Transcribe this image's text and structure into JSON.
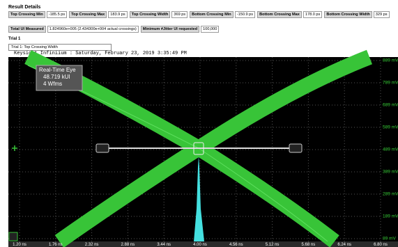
{
  "header": {
    "title": "Result Details"
  },
  "measurements": [
    {
      "label": "Top Crossing Min",
      "value": "-185.5 ps"
    },
    {
      "label": "Top Crossing Max",
      "value": "183.9 ps"
    },
    {
      "label": "Top Crossing Width",
      "value": "369 ps"
    },
    {
      "label": "Bottom Crossing Min",
      "value": "-150.9 ps"
    },
    {
      "label": "Bottom Crossing Max",
      "value": "178.0 ps"
    },
    {
      "label": "Bottom Crossing Width",
      "value": "329 ps"
    }
  ],
  "summary": [
    {
      "label": "Total UI Measured",
      "value": "1.824960e+005 (2.434300e+004 actual crossings)"
    },
    {
      "label": "Minimum #Jitter UI requested",
      "value": "100,000"
    }
  ],
  "trial": {
    "title": "Trial 1",
    "tab": "Trial 1: Top Crossing Width"
  },
  "scope": {
    "caption": "Keysight Infiniium : Saturday, February 23, 2019 3:35:49 PM",
    "info": [
      "Real-Time Eye",
      "48.719 kUI",
      "4 Wfms"
    ],
    "y_labels": [
      "889 mV",
      "789 mV",
      "689 mV",
      "589 mV",
      "489 mV",
      "389 mV",
      "289 mV",
      "189 mV",
      "89 mV"
    ],
    "x_labels": [
      "1.20 ns",
      "1.76 ns",
      "2.32 ns",
      "2.88 ns",
      "3.44 ns",
      "4.00 ns",
      "4.56 ns",
      "5.12 ns",
      "5.68 ns",
      "6.24 ns",
      "6.80 ns"
    ]
  }
}
